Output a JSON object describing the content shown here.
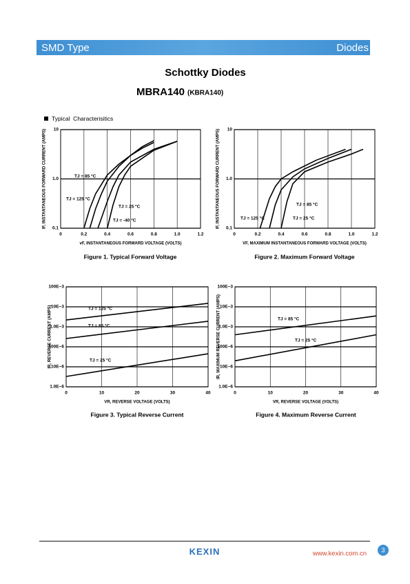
{
  "header": {
    "left": "SMD Type",
    "right": "Diodes"
  },
  "title": "Schottky Diodes",
  "part": "MBRA140",
  "alt_part": "(KBRA140)",
  "section": "Typical  Characterisitics",
  "chart_data": [
    {
      "type": "line",
      "title": "Figure 1. Typical Forward Voltage",
      "xlabel": "vF, INSTANTANEOUS FORWARD VOLTAGE (VOLTS)",
      "ylabel": "IF, INSTANTANEOUS FORWARD CURRENT (AMPS)",
      "xlim": [
        0,
        1.2
      ],
      "ylim": [
        0.1,
        10
      ],
      "log_y": true,
      "grid": true,
      "xticks": [
        0,
        0.2,
        0.4,
        0.6,
        0.8,
        {
          "value": 1,
          "label": "1.0"
        },
        1.2
      ],
      "yticks": [
        0.1,
        {
          "value": 1,
          "label": "1.0"
        },
        10
      ],
      "series": [
        {
          "name": "TJ = 85 °C",
          "color": "#000000",
          "x": [
            0.25,
            0.3,
            0.35,
            0.4,
            0.5,
            0.6,
            0.7,
            0.8
          ],
          "values": [
            0.1,
            0.25,
            0.5,
            0.9,
            1.8,
            3,
            4.5,
            6
          ]
        },
        {
          "name": "TJ = 125 °C",
          "color": "#000000",
          "x": [
            0.2,
            0.25,
            0.3,
            0.4,
            0.5,
            0.6,
            0.7,
            0.8
          ],
          "values": [
            0.1,
            0.25,
            0.5,
            1.2,
            2,
            3,
            4.2,
            5.5
          ]
        },
        {
          "name": "TJ = 25 °C",
          "color": "#000000",
          "x": [
            0.32,
            0.4,
            0.45,
            0.5,
            0.6,
            0.8,
            1.0
          ],
          "values": [
            0.1,
            0.35,
            0.7,
            1.2,
            2.2,
            4,
            5.8
          ]
        },
        {
          "name": "TJ = -40 °C",
          "color": "#000000",
          "x": [
            0.4,
            0.45,
            0.5,
            0.55,
            0.6,
            0.8,
            1.0
          ],
          "values": [
            0.1,
            0.3,
            0.7,
            1.2,
            1.8,
            3.8,
            5.8
          ]
        }
      ]
    },
    {
      "type": "line",
      "title": "Figure 2. Maximum Forward Voltage",
      "xlabel": "VF, MAXIMUM INSTANTANEOUS FORWARD VOLTAGE (VOLTS)",
      "ylabel": "IF, INSTANTANEOUS FORWARD CURRENT (AMPS)",
      "xlim": [
        0,
        1.2
      ],
      "ylim": [
        0.1,
        10
      ],
      "log_y": true,
      "grid": true,
      "xticks": [
        0,
        0.2,
        0.4,
        0.6,
        0.8,
        {
          "value": 1,
          "label": "1.0"
        },
        1.2
      ],
      "yticks": [
        0.1,
        {
          "value": 1,
          "label": "1.0"
        },
        10
      ],
      "series": [
        {
          "name": "TJ = 125 °C",
          "color": "#000000",
          "x": [
            0.22,
            0.3,
            0.35,
            0.4,
            0.5,
            0.7,
            0.95
          ],
          "values": [
            0.1,
            0.4,
            0.7,
            1.0,
            1.4,
            2.4,
            4
          ]
        },
        {
          "name": "TJ = 85 °C",
          "color": "#000000",
          "x": [
            0.3,
            0.35,
            0.4,
            0.5,
            0.6,
            0.8,
            1.0
          ],
          "values": [
            0.1,
            0.3,
            0.6,
            1.1,
            1.6,
            2.6,
            4
          ]
        },
        {
          "name": "TJ = 25 °C",
          "color": "#000000",
          "x": [
            0.4,
            0.45,
            0.5,
            0.6,
            0.8,
            1.0,
            1.1
          ],
          "values": [
            0.1,
            0.35,
            0.8,
            1.4,
            2.2,
            3.2,
            4
          ]
        }
      ]
    },
    {
      "type": "line",
      "title": "Figure 3. Typical Reverse Current",
      "xlabel": "VR, REVERSE VOLTAGE (VOLTS)",
      "ylabel": "IR, REVERSE CURRENT (AMPS)",
      "xlim": [
        0,
        40
      ],
      "ylim": [
        1e-06,
        0.1
      ],
      "log_y": true,
      "grid": true,
      "xticks": [
        0,
        10,
        20,
        30,
        40
      ],
      "yticks": [
        {
          "value": 1e-06,
          "label": "1.0E−6"
        },
        {
          "value": 1e-05,
          "label": "10E−6"
        },
        {
          "value": 0.0001,
          "label": "100E−6"
        },
        {
          "value": 0.001,
          "label": "1.0E−3"
        },
        {
          "value": 0.01,
          "label": "10E−3"
        },
        {
          "value": 0.1,
          "label": "100E−3"
        }
      ],
      "series": [
        {
          "name": "TJ = 125 °C",
          "color": "#000000",
          "x": [
            0,
            40
          ],
          "values": [
            0.0022,
            0.015
          ]
        },
        {
          "name": "TJ = 85 °C",
          "color": "#000000",
          "x": [
            0,
            40
          ],
          "values": [
            0.00026,
            0.0019
          ]
        },
        {
          "name": "TJ = 25 °C",
          "color": "#000000",
          "x": [
            0,
            40
          ],
          "values": [
            3.3e-06,
            4.5e-05
          ]
        }
      ]
    },
    {
      "type": "line",
      "title": "Figure 4. Maximum Reverse Current",
      "xlabel": "VR, REVERSE VOLTAGE (VOLTS)",
      "ylabel": "IR, MAXIMUM REVERSE CURRENT (AMPS)",
      "xlim": [
        0,
        40
      ],
      "ylim": [
        1e-06,
        0.1
      ],
      "log_y": true,
      "grid": true,
      "xticks": [
        0,
        10,
        20,
        30,
        40
      ],
      "yticks": [
        {
          "value": 1e-06,
          "label": "1.0E−6"
        },
        {
          "value": 1e-05,
          "label": "10E−6"
        },
        {
          "value": 0.0001,
          "label": "100E−6"
        },
        {
          "value": 0.001,
          "label": "1.0E−3"
        },
        {
          "value": 0.01,
          "label": "10E−3"
        },
        {
          "value": 0.1,
          "label": "100E−3"
        }
      ],
      "series": [
        {
          "name": "TJ = 85 °C",
          "color": "#000000",
          "x": [
            0,
            40
          ],
          "values": [
            0.0004,
            0.0035
          ]
        },
        {
          "name": "TJ = 25 °C",
          "color": "#000000",
          "x": [
            0,
            40
          ],
          "values": [
            2e-05,
            0.0004
          ]
        }
      ]
    }
  ],
  "footer": {
    "brand": "KEXIN",
    "url": "www.kexin.com.cn",
    "page": "3"
  }
}
